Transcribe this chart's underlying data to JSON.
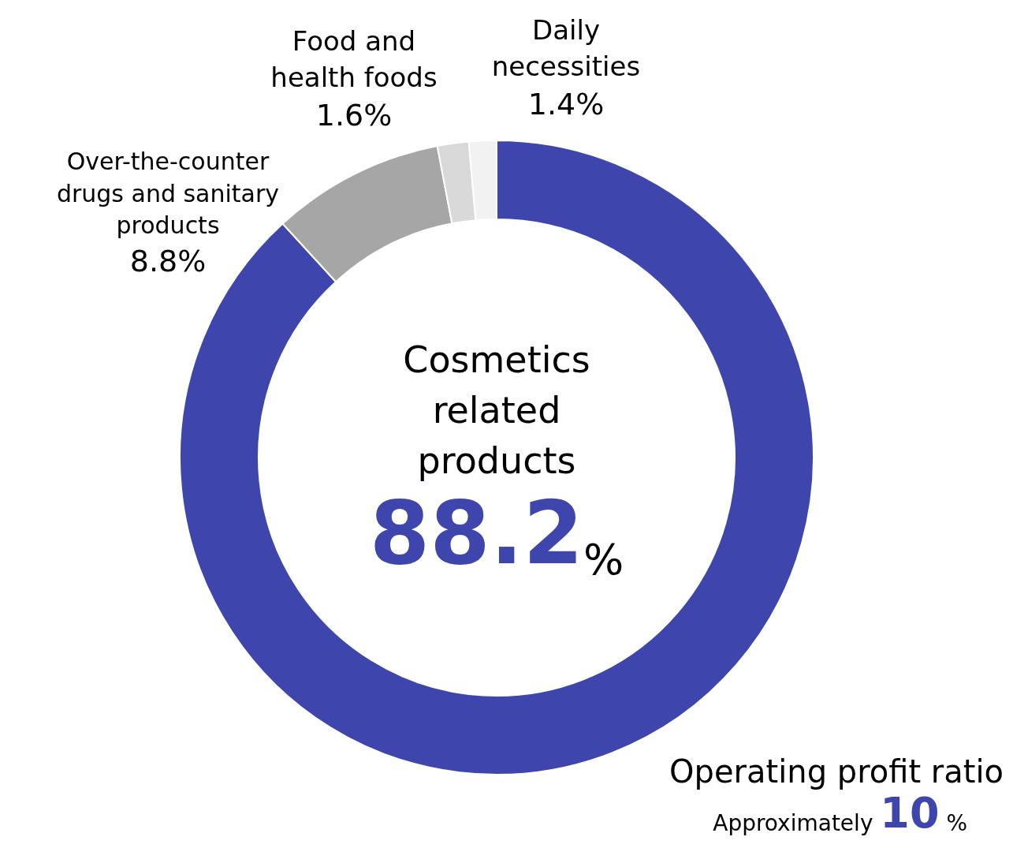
{
  "chart_data": {
    "type": "donut",
    "categories": [
      "Cosmetics related products",
      "Over-the-counter drugs and sanitary products",
      "Food and health foods",
      "Daily necessities"
    ],
    "values": [
      88.2,
      8.8,
      1.6,
      1.4
    ],
    "value_labels": [
      "88.2%",
      "8.8%",
      "1.6%",
      "1.4%"
    ],
    "colors": [
      "#3e46ad",
      "#a6a6a6",
      "#d9d9d9",
      "#f2f2f2"
    ],
    "annotations": [
      "Operating profit ratio",
      "Approximately 10 %"
    ],
    "legend": false
  }
}
